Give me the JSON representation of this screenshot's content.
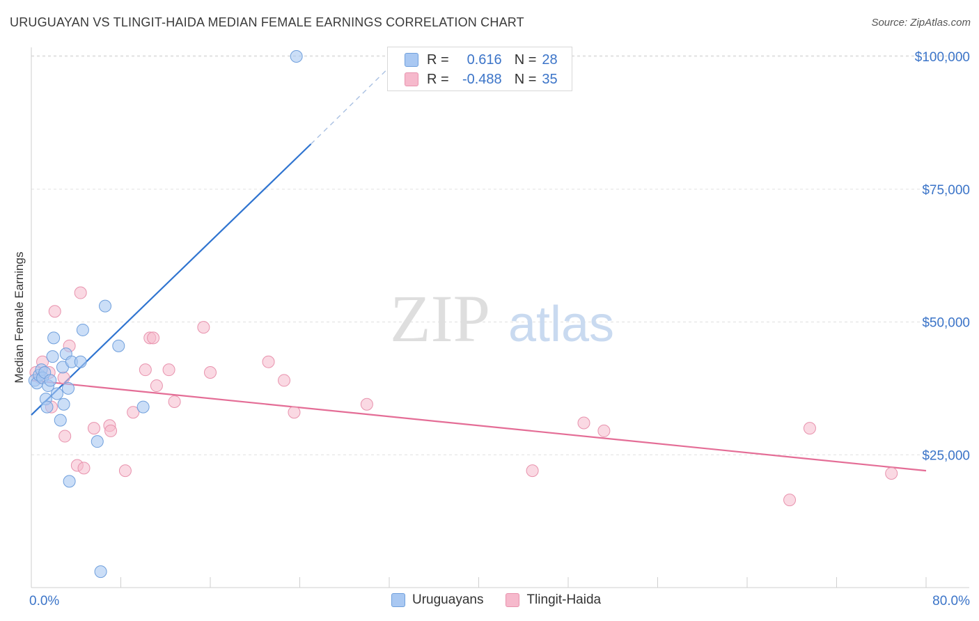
{
  "header": {
    "title": "URUGUAYAN VS TLINGIT-HAIDA MEDIAN FEMALE EARNINGS CORRELATION CHART",
    "source": "Source: ZipAtlas.com"
  },
  "watermark": {
    "zip": "ZIP",
    "atlas": "atlas"
  },
  "legend": {
    "rows": [
      {
        "r_label": "R =",
        "r_value": "0.616",
        "n_label": "N =",
        "n_value": "28"
      },
      {
        "r_label": "R =",
        "r_value": "-0.488",
        "n_label": "N =",
        "n_value": "35"
      }
    ]
  },
  "bottom_legend": {
    "series1": "Uruguayans",
    "series2": "Tlingit-Haida"
  },
  "colors": {
    "blue_fill": "#a9c8f2",
    "blue_stroke": "#6f9fdc",
    "blue_line": "#2f74d0",
    "pink_fill": "#f6b9cc",
    "pink_stroke": "#e892ad",
    "pink_line": "#e46d96",
    "tick_text": "#3b74c8",
    "grid": "#e0e0e0"
  },
  "chart_data": {
    "type": "scatter",
    "title": "URUGUAYAN VS TLINGIT-HAIDA MEDIAN FEMALE EARNINGS CORRELATION CHART",
    "xlabel": "",
    "ylabel": "Median Female Earnings",
    "xlim": [
      0,
      80
    ],
    "ylim": [
      0,
      102000
    ],
    "x_tick_labels": [
      {
        "value": 0,
        "label": "0.0%"
      },
      {
        "value": 80,
        "label": "80.0%"
      }
    ],
    "y_tick_labels": [
      {
        "value": 25000,
        "label": "$25,000"
      },
      {
        "value": 50000,
        "label": "$50,000"
      },
      {
        "value": 75000,
        "label": "$75,000"
      },
      {
        "value": 100000,
        "label": "$100,000"
      }
    ],
    "series": [
      {
        "name": "Uruguayans",
        "points": [
          [
            0.3,
            39000
          ],
          [
            0.5,
            38500
          ],
          [
            0.7,
            40000
          ],
          [
            0.9,
            41000
          ],
          [
            1.0,
            39500
          ],
          [
            1.2,
            40500
          ],
          [
            1.3,
            35500
          ],
          [
            1.4,
            34000
          ],
          [
            1.5,
            38000
          ],
          [
            1.7,
            39000
          ],
          [
            1.9,
            43500
          ],
          [
            2.0,
            47000
          ],
          [
            2.3,
            36500
          ],
          [
            2.6,
            31500
          ],
          [
            2.8,
            41500
          ],
          [
            2.9,
            34500
          ],
          [
            3.1,
            44000
          ],
          [
            3.3,
            37500
          ],
          [
            3.4,
            20000
          ],
          [
            3.6,
            42500
          ],
          [
            4.4,
            42500
          ],
          [
            4.6,
            48500
          ],
          [
            5.9,
            27500
          ],
          [
            6.2,
            3000
          ],
          [
            6.6,
            53000
          ],
          [
            7.8,
            45500
          ],
          [
            10.0,
            34000
          ],
          [
            23.7,
            100000
          ]
        ],
        "trend": {
          "x_start": 0,
          "y_start": 32500,
          "x_solid_end": 25,
          "y_solid_end": 83500,
          "x_dash_end": 33,
          "y_dash_end": 100000
        }
      },
      {
        "name": "Tlingit-Haida",
        "points": [
          [
            0.4,
            40500
          ],
          [
            0.8,
            39500
          ],
          [
            1.0,
            42500
          ],
          [
            1.6,
            40500
          ],
          [
            1.8,
            34000
          ],
          [
            2.1,
            52000
          ],
          [
            2.9,
            39500
          ],
          [
            3.0,
            28500
          ],
          [
            3.4,
            45500
          ],
          [
            4.1,
            23000
          ],
          [
            4.4,
            55500
          ],
          [
            4.7,
            22500
          ],
          [
            5.6,
            30000
          ],
          [
            7.0,
            30500
          ],
          [
            7.1,
            29500
          ],
          [
            8.4,
            22000
          ],
          [
            9.1,
            33000
          ],
          [
            10.2,
            41000
          ],
          [
            10.6,
            47000
          ],
          [
            10.9,
            47000
          ],
          [
            11.2,
            38000
          ],
          [
            12.3,
            41000
          ],
          [
            12.8,
            35000
          ],
          [
            15.4,
            49000
          ],
          [
            16.0,
            40500
          ],
          [
            21.2,
            42500
          ],
          [
            22.6,
            39000
          ],
          [
            23.5,
            33000
          ],
          [
            30.0,
            34500
          ],
          [
            44.8,
            22000
          ],
          [
            49.4,
            31000
          ],
          [
            51.2,
            29500
          ],
          [
            67.8,
            16500
          ],
          [
            69.6,
            30000
          ],
          [
            76.9,
            21500
          ]
        ],
        "trend": {
          "x_start": 0,
          "y_start": 39000,
          "x_end": 80,
          "y_end": 22000
        }
      }
    ]
  }
}
